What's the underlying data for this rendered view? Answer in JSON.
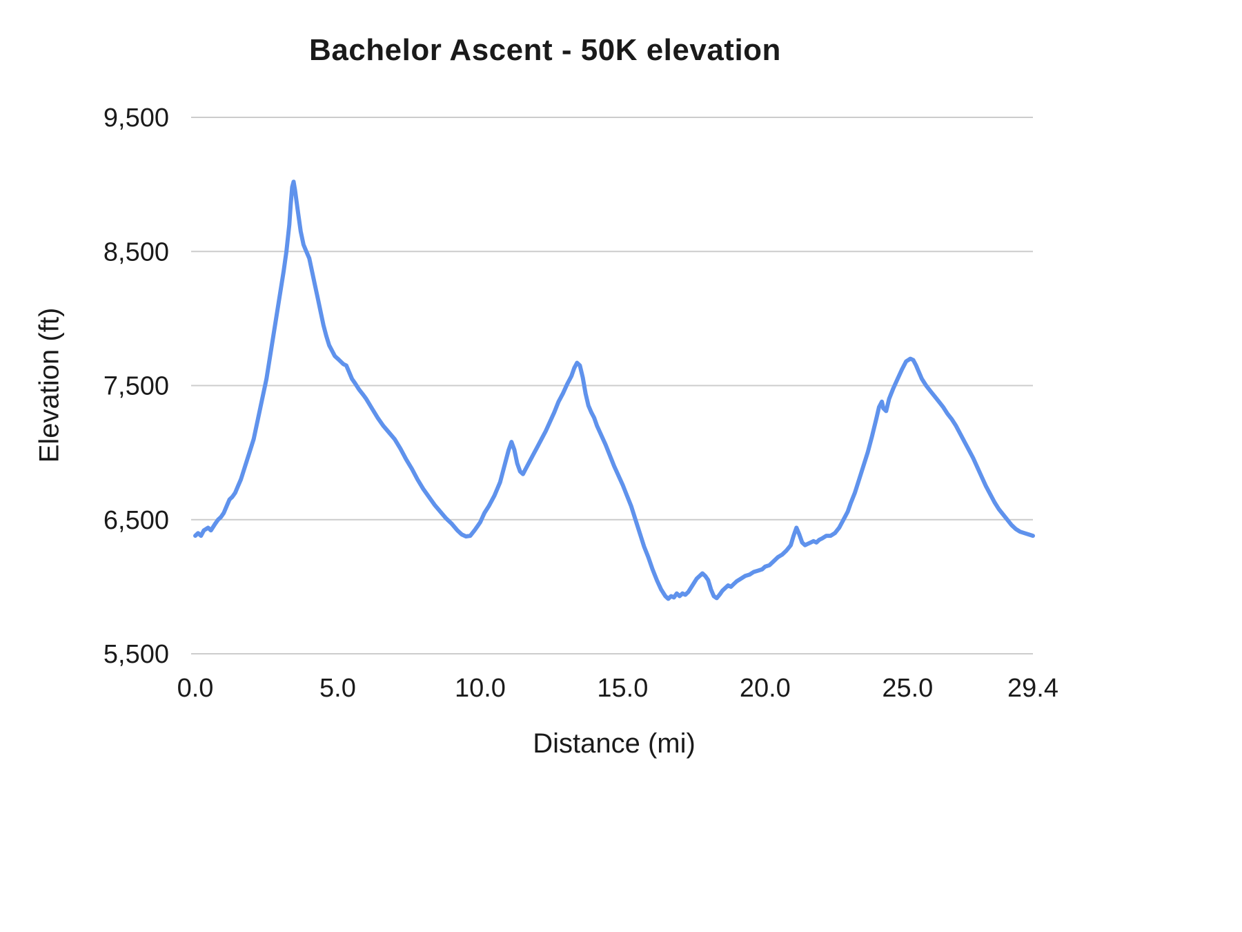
{
  "chart_data": {
    "type": "line",
    "title": "Bachelor Ascent - 50K elevation",
    "xlabel": "Distance (mi)",
    "ylabel": "Elevation (ft)",
    "x_range": [
      0,
      29.4
    ],
    "y_range": [
      5500,
      9500
    ],
    "grid": true,
    "legend": "none",
    "line_color": "#5f92ec",
    "grid_color": "#cccccc",
    "x_ticks": [
      {
        "v": 0,
        "label": "0.0"
      },
      {
        "v": 5,
        "label": "5.0"
      },
      {
        "v": 10,
        "label": "10.0"
      },
      {
        "v": 15,
        "label": "15.0"
      },
      {
        "v": 20,
        "label": "20.0"
      },
      {
        "v": 25,
        "label": "25.0"
      },
      {
        "v": 29.4,
        "label": "29.4"
      }
    ],
    "y_ticks": [
      {
        "v": 5500,
        "label": "5,500"
      },
      {
        "v": 6500,
        "label": "6,500"
      },
      {
        "v": 7500,
        "label": "7,500"
      },
      {
        "v": 8500,
        "label": "8,500"
      },
      {
        "v": 9500,
        "label": "9,500"
      }
    ],
    "series": [
      {
        "name": "Elevation",
        "points": [
          [
            0.0,
            6380
          ],
          [
            0.1,
            6400
          ],
          [
            0.2,
            6380
          ],
          [
            0.3,
            6420
          ],
          [
            0.45,
            6440
          ],
          [
            0.55,
            6420
          ],
          [
            0.7,
            6470
          ],
          [
            0.8,
            6500
          ],
          [
            0.9,
            6520
          ],
          [
            1.0,
            6550
          ],
          [
            1.1,
            6600
          ],
          [
            1.2,
            6650
          ],
          [
            1.3,
            6670
          ],
          [
            1.4,
            6700
          ],
          [
            1.5,
            6750
          ],
          [
            1.6,
            6800
          ],
          [
            1.75,
            6900
          ],
          [
            1.9,
            7000
          ],
          [
            2.05,
            7100
          ],
          [
            2.2,
            7250
          ],
          [
            2.35,
            7400
          ],
          [
            2.5,
            7550
          ],
          [
            2.65,
            7750
          ],
          [
            2.8,
            7950
          ],
          [
            2.95,
            8150
          ],
          [
            3.1,
            8350
          ],
          [
            3.2,
            8500
          ],
          [
            3.3,
            8700
          ],
          [
            3.35,
            8850
          ],
          [
            3.4,
            8980
          ],
          [
            3.45,
            9020
          ],
          [
            3.5,
            8960
          ],
          [
            3.6,
            8800
          ],
          [
            3.7,
            8650
          ],
          [
            3.8,
            8550
          ],
          [
            3.9,
            8500
          ],
          [
            4.0,
            8450
          ],
          [
            4.1,
            8350
          ],
          [
            4.2,
            8250
          ],
          [
            4.3,
            8150
          ],
          [
            4.4,
            8050
          ],
          [
            4.5,
            7950
          ],
          [
            4.6,
            7870
          ],
          [
            4.7,
            7800
          ],
          [
            4.8,
            7760
          ],
          [
            4.9,
            7720
          ],
          [
            5.0,
            7700
          ],
          [
            5.1,
            7680
          ],
          [
            5.2,
            7660
          ],
          [
            5.3,
            7650
          ],
          [
            5.4,
            7600
          ],
          [
            5.5,
            7550
          ],
          [
            5.6,
            7520
          ],
          [
            5.75,
            7470
          ],
          [
            5.9,
            7430
          ],
          [
            6.0,
            7400
          ],
          [
            6.2,
            7330
          ],
          [
            6.4,
            7260
          ],
          [
            6.6,
            7200
          ],
          [
            6.8,
            7150
          ],
          [
            7.0,
            7100
          ],
          [
            7.2,
            7030
          ],
          [
            7.4,
            6950
          ],
          [
            7.6,
            6880
          ],
          [
            7.8,
            6800
          ],
          [
            8.0,
            6730
          ],
          [
            8.2,
            6670
          ],
          [
            8.4,
            6610
          ],
          [
            8.6,
            6560
          ],
          [
            8.8,
            6510
          ],
          [
            9.0,
            6470
          ],
          [
            9.2,
            6420
          ],
          [
            9.35,
            6390
          ],
          [
            9.5,
            6375
          ],
          [
            9.65,
            6380
          ],
          [
            9.8,
            6420
          ],
          [
            9.9,
            6450
          ],
          [
            10.0,
            6480
          ],
          [
            10.15,
            6550
          ],
          [
            10.3,
            6600
          ],
          [
            10.5,
            6680
          ],
          [
            10.7,
            6780
          ],
          [
            10.85,
            6900
          ],
          [
            11.0,
            7020
          ],
          [
            11.1,
            7080
          ],
          [
            11.2,
            7020
          ],
          [
            11.3,
            6920
          ],
          [
            11.4,
            6860
          ],
          [
            11.5,
            6840
          ],
          [
            11.6,
            6880
          ],
          [
            11.7,
            6920
          ],
          [
            11.85,
            6980
          ],
          [
            12.0,
            7040
          ],
          [
            12.15,
            7100
          ],
          [
            12.3,
            7160
          ],
          [
            12.45,
            7230
          ],
          [
            12.6,
            7300
          ],
          [
            12.75,
            7380
          ],
          [
            12.9,
            7440
          ],
          [
            13.05,
            7510
          ],
          [
            13.2,
            7570
          ],
          [
            13.3,
            7630
          ],
          [
            13.4,
            7670
          ],
          [
            13.5,
            7650
          ],
          [
            13.6,
            7560
          ],
          [
            13.7,
            7440
          ],
          [
            13.8,
            7350
          ],
          [
            13.9,
            7300
          ],
          [
            14.0,
            7260
          ],
          [
            14.1,
            7200
          ],
          [
            14.25,
            7130
          ],
          [
            14.4,
            7060
          ],
          [
            14.55,
            6980
          ],
          [
            14.7,
            6900
          ],
          [
            14.85,
            6830
          ],
          [
            15.0,
            6760
          ],
          [
            15.15,
            6680
          ],
          [
            15.3,
            6600
          ],
          [
            15.45,
            6500
          ],
          [
            15.6,
            6400
          ],
          [
            15.75,
            6300
          ],
          [
            15.9,
            6220
          ],
          [
            16.05,
            6130
          ],
          [
            16.2,
            6050
          ],
          [
            16.35,
            5980
          ],
          [
            16.5,
            5930
          ],
          [
            16.6,
            5910
          ],
          [
            16.7,
            5930
          ],
          [
            16.8,
            5920
          ],
          [
            16.9,
            5950
          ],
          [
            17.0,
            5930
          ],
          [
            17.1,
            5950
          ],
          [
            17.2,
            5940
          ],
          [
            17.3,
            5960
          ],
          [
            17.45,
            6010
          ],
          [
            17.6,
            6060
          ],
          [
            17.7,
            6080
          ],
          [
            17.8,
            6100
          ],
          [
            17.9,
            6080
          ],
          [
            18.0,
            6050
          ],
          [
            18.1,
            5980
          ],
          [
            18.2,
            5930
          ],
          [
            18.3,
            5915
          ],
          [
            18.4,
            5940
          ],
          [
            18.5,
            5970
          ],
          [
            18.6,
            5990
          ],
          [
            18.7,
            6010
          ],
          [
            18.8,
            6000
          ],
          [
            18.9,
            6020
          ],
          [
            19.0,
            6040
          ],
          [
            19.15,
            6060
          ],
          [
            19.3,
            6080
          ],
          [
            19.45,
            6090
          ],
          [
            19.6,
            6110
          ],
          [
            19.75,
            6120
          ],
          [
            19.9,
            6130
          ],
          [
            20.0,
            6150
          ],
          [
            20.15,
            6160
          ],
          [
            20.3,
            6190
          ],
          [
            20.45,
            6220
          ],
          [
            20.6,
            6240
          ],
          [
            20.75,
            6270
          ],
          [
            20.9,
            6310
          ],
          [
            21.0,
            6380
          ],
          [
            21.1,
            6440
          ],
          [
            21.2,
            6390
          ],
          [
            21.3,
            6330
          ],
          [
            21.4,
            6310
          ],
          [
            21.5,
            6320
          ],
          [
            21.6,
            6330
          ],
          [
            21.7,
            6340
          ],
          [
            21.8,
            6330
          ],
          [
            21.9,
            6350
          ],
          [
            22.0,
            6360
          ],
          [
            22.15,
            6380
          ],
          [
            22.3,
            6380
          ],
          [
            22.45,
            6400
          ],
          [
            22.6,
            6440
          ],
          [
            22.75,
            6500
          ],
          [
            22.9,
            6560
          ],
          [
            23.0,
            6620
          ],
          [
            23.15,
            6700
          ],
          [
            23.3,
            6800
          ],
          [
            23.45,
            6900
          ],
          [
            23.6,
            7000
          ],
          [
            23.75,
            7120
          ],
          [
            23.9,
            7250
          ],
          [
            24.0,
            7340
          ],
          [
            24.1,
            7380
          ],
          [
            24.15,
            7330
          ],
          [
            24.25,
            7310
          ],
          [
            24.35,
            7400
          ],
          [
            24.5,
            7480
          ],
          [
            24.65,
            7550
          ],
          [
            24.8,
            7620
          ],
          [
            24.95,
            7680
          ],
          [
            25.1,
            7700
          ],
          [
            25.2,
            7690
          ],
          [
            25.3,
            7650
          ],
          [
            25.4,
            7600
          ],
          [
            25.5,
            7550
          ],
          [
            25.65,
            7500
          ],
          [
            25.8,
            7460
          ],
          [
            25.95,
            7420
          ],
          [
            26.1,
            7380
          ],
          [
            26.25,
            7340
          ],
          [
            26.4,
            7290
          ],
          [
            26.55,
            7250
          ],
          [
            26.7,
            7200
          ],
          [
            26.85,
            7140
          ],
          [
            27.0,
            7080
          ],
          [
            27.15,
            7020
          ],
          [
            27.3,
            6960
          ],
          [
            27.45,
            6890
          ],
          [
            27.6,
            6820
          ],
          [
            27.75,
            6750
          ],
          [
            27.9,
            6690
          ],
          [
            28.05,
            6630
          ],
          [
            28.2,
            6580
          ],
          [
            28.35,
            6540
          ],
          [
            28.5,
            6500
          ],
          [
            28.65,
            6460
          ],
          [
            28.8,
            6430
          ],
          [
            28.95,
            6410
          ],
          [
            29.1,
            6400
          ],
          [
            29.25,
            6390
          ],
          [
            29.4,
            6380
          ]
        ]
      }
    ]
  }
}
